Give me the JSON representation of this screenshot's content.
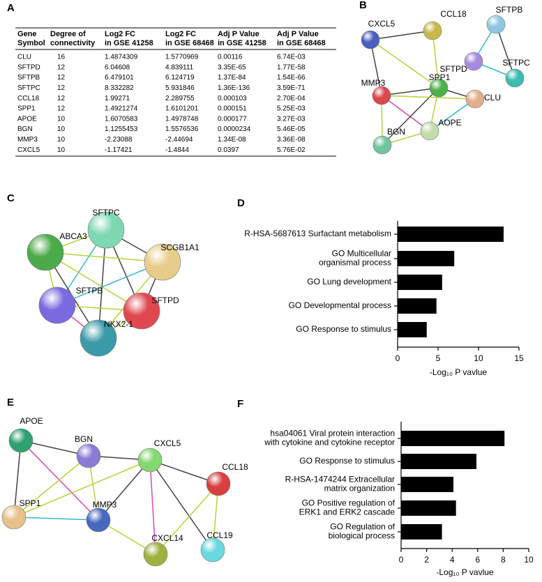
{
  "panels": [
    "A",
    "B",
    "C",
    "D",
    "E",
    "F"
  ],
  "table": {
    "header": [
      "Gene\nSymbol",
      "Degree of\nconnectivity",
      "Log2 FC\nin GSE 41258",
      "Log2 FC\nin GSE 68468",
      "Adj P Value\nin GSE 41258",
      "Adj P Value\nin GSE 68468"
    ],
    "rows": [
      [
        "CLU",
        "16",
        "1.4874309",
        "1.5770969",
        "0.00116",
        "6.74E-03"
      ],
      [
        "SFTPD",
        "12",
        "6.04608",
        "4.839111",
        "3.35E-65",
        "1.77E-58"
      ],
      [
        "SFTPB",
        "12",
        "6.479101",
        "6.124719",
        "1.37E-84",
        "1.54E-66"
      ],
      [
        "SFTPC",
        "12",
        "8.332282",
        "5.931846",
        "1.36E-136",
        "3.59E-71"
      ],
      [
        "CCL18",
        "12",
        "1.99271",
        "2.289755",
        "0.000103",
        "2.70E-04"
      ],
      [
        "SPP1",
        "12",
        "1.4921274",
        "1.6101201",
        "0.000151",
        "5.25E-03"
      ],
      [
        "APOE",
        "10",
        "1.6070583",
        "1.4978748",
        "0.000177",
        "3.27E-03"
      ],
      [
        "BGN",
        "10",
        "1.1255453",
        "1.5576536",
        "0.0000234",
        "5.46E-05"
      ],
      [
        "MMP3",
        "10",
        "-2.23088",
        "-2.44694",
        "1.34E-08",
        "3.36E-08"
      ],
      [
        "CXCL5",
        "10",
        "-1.17421",
        "-1.4844",
        "0.0397",
        "5.76E-02"
      ]
    ]
  },
  "networks": [
    {
      "nodes": [
        "CXCL5",
        "CCL18",
        "SFTPB",
        "SFTPD",
        "SFTPC",
        "MMP3",
        "SPP1",
        "CLU",
        "AOPE",
        "BGN"
      ]
    },
    {
      "nodes": [
        "SFTPC",
        "ABCA3",
        "SCGB1A1",
        "SFTPB",
        "SFTPD",
        "NKX2-1"
      ]
    },
    {
      "nodes": [
        "APOE",
        "BGN",
        "CXCL5",
        "CCL18",
        "SPP1",
        "MMP3",
        "CXCL14",
        "CCL19"
      ]
    }
  ],
  "chart_data": [
    {
      "type": "bar",
      "orientation": "horizontal",
      "categories": [
        "R-HSA-5687613 Surfactant metabolism",
        "GO Multicellular\norganismal process",
        "GO Lung development",
        "GO Developmental process",
        "GO Response to stimulus"
      ],
      "values": [
        13.1,
        7.0,
        5.5,
        4.8,
        3.6
      ],
      "color": "#000000",
      "xlim": [
        0,
        15
      ],
      "xticks": [
        0,
        5,
        10,
        15
      ],
      "xlabel": "-Log₁₀ P vavlue"
    },
    {
      "type": "bar",
      "orientation": "horizontal",
      "categories": [
        "hsa04061 Viral protein interaction\nwith cytokine and cytokine receptor",
        "GO Response to stimulus",
        "R-HSA-1474244 Extracellular\nmatrix organization",
        "GO Positive regulation of\nERK1 and ERK2 cascade",
        "GO Regulation of\nbiological process"
      ],
      "values": [
        8.1,
        5.9,
        4.1,
        4.3,
        3.2
      ],
      "color": "#000000",
      "xlim": [
        0,
        10
      ],
      "xticks": [
        0,
        2,
        4,
        6,
        8,
        10
      ],
      "xlabel": "-Log₁₀ P vavlue"
    }
  ]
}
